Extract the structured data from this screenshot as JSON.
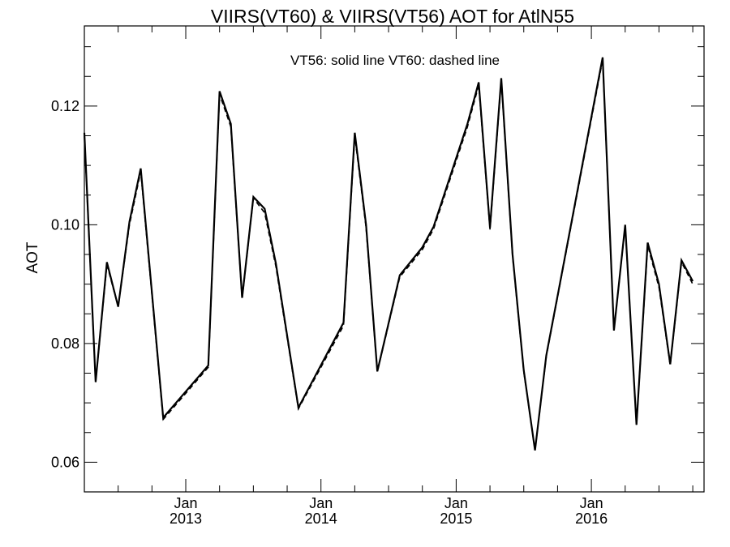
{
  "chart_data": {
    "type": "line",
    "title": "VIIRS(VT60) & VIIRS(VT56)  AOT for AtlN55",
    "annotation": "VT56: solid line   VT60: dashed line",
    "ylabel": "AOT",
    "xlabel": "",
    "ylim": [
      0.055,
      0.1335
    ],
    "xlim": [
      "2012-04",
      "2016-11"
    ],
    "yticks": [
      0.06,
      0.08,
      0.1,
      0.12
    ],
    "ytick_labels": [
      "0.06",
      "0.08",
      "0.10",
      "0.12"
    ],
    "xticks": [
      {
        "date": "2013-01",
        "month": "Jan",
        "year": "2013"
      },
      {
        "date": "2014-01",
        "month": "Jan",
        "year": "2014"
      },
      {
        "date": "2015-01",
        "month": "Jan",
        "year": "2015"
      },
      {
        "date": "2016-01",
        "month": "Jan",
        "year": "2016"
      }
    ],
    "grid": false,
    "colors": {
      "line": "#000000",
      "background": "#ffffff"
    },
    "series": [
      {
        "name": "VT56",
        "style": "solid",
        "x": [
          "2012-04",
          "2012-05",
          "2012-06",
          "2012-07",
          "2012-08",
          "2012-09",
          "2012-11",
          "2013-03",
          "2013-04",
          "2013-05",
          "2013-06",
          "2013-07",
          "2013-08",
          "2013-09",
          "2013-11",
          "2014-03",
          "2014-04",
          "2014-05",
          "2014-06",
          "2014-08",
          "2014-10",
          "2014-11",
          "2015-02",
          "2015-03",
          "2015-04",
          "2015-05",
          "2015-06",
          "2015-07",
          "2015-08",
          "2015-09",
          "2015-10",
          "2016-02",
          "2016-03",
          "2016-04",
          "2016-05",
          "2016-06",
          "2016-07",
          "2016-08",
          "2016-09",
          "2016-10"
        ],
        "values": [
          0.1155,
          0.0735,
          0.0937,
          0.0862,
          0.1005,
          0.1095,
          0.0675,
          0.0763,
          0.1225,
          0.117,
          0.0877,
          0.1047,
          0.1027,
          0.0935,
          0.0692,
          0.0835,
          0.1155,
          0.1,
          0.0753,
          0.0915,
          0.0962,
          0.0997,
          0.117,
          0.124,
          0.0995,
          0.1247,
          0.095,
          0.0755,
          0.062,
          0.078,
          0.088,
          0.1282,
          0.0822,
          0.1,
          0.0663,
          0.097,
          0.09,
          0.0765,
          0.094,
          0.0905
        ]
      },
      {
        "name": "VT60",
        "style": "dashed",
        "x": [
          "2012-04",
          "2012-05",
          "2012-06",
          "2012-07",
          "2012-08",
          "2012-09",
          "2012-11",
          "2013-03",
          "2013-04",
          "2013-05",
          "2013-06",
          "2013-07",
          "2013-08",
          "2013-09",
          "2013-11",
          "2014-03",
          "2014-04",
          "2014-05",
          "2014-06",
          "2014-08",
          "2014-10",
          "2014-11",
          "2015-02",
          "2015-03",
          "2015-04",
          "2015-05",
          "2015-06",
          "2015-07",
          "2015-08",
          "2015-09",
          "2015-10",
          "2016-02",
          "2016-03",
          "2016-04",
          "2016-05",
          "2016-06",
          "2016-07",
          "2016-08",
          "2016-09",
          "2016-10"
        ],
        "values": [
          0.115,
          0.0735,
          0.0933,
          0.0862,
          0.1,
          0.109,
          0.0672,
          0.076,
          0.122,
          0.1165,
          0.0875,
          0.1045,
          0.102,
          0.093,
          0.069,
          0.083,
          0.115,
          0.0995,
          0.0752,
          0.0912,
          0.0958,
          0.0993,
          0.1165,
          0.1235,
          0.0992,
          0.1243,
          0.0948,
          0.0753,
          0.062,
          0.0778,
          0.0878,
          0.1278,
          0.0822,
          0.0998,
          0.0663,
          0.0965,
          0.0895,
          0.0763,
          0.0937,
          0.09
        ]
      }
    ]
  }
}
